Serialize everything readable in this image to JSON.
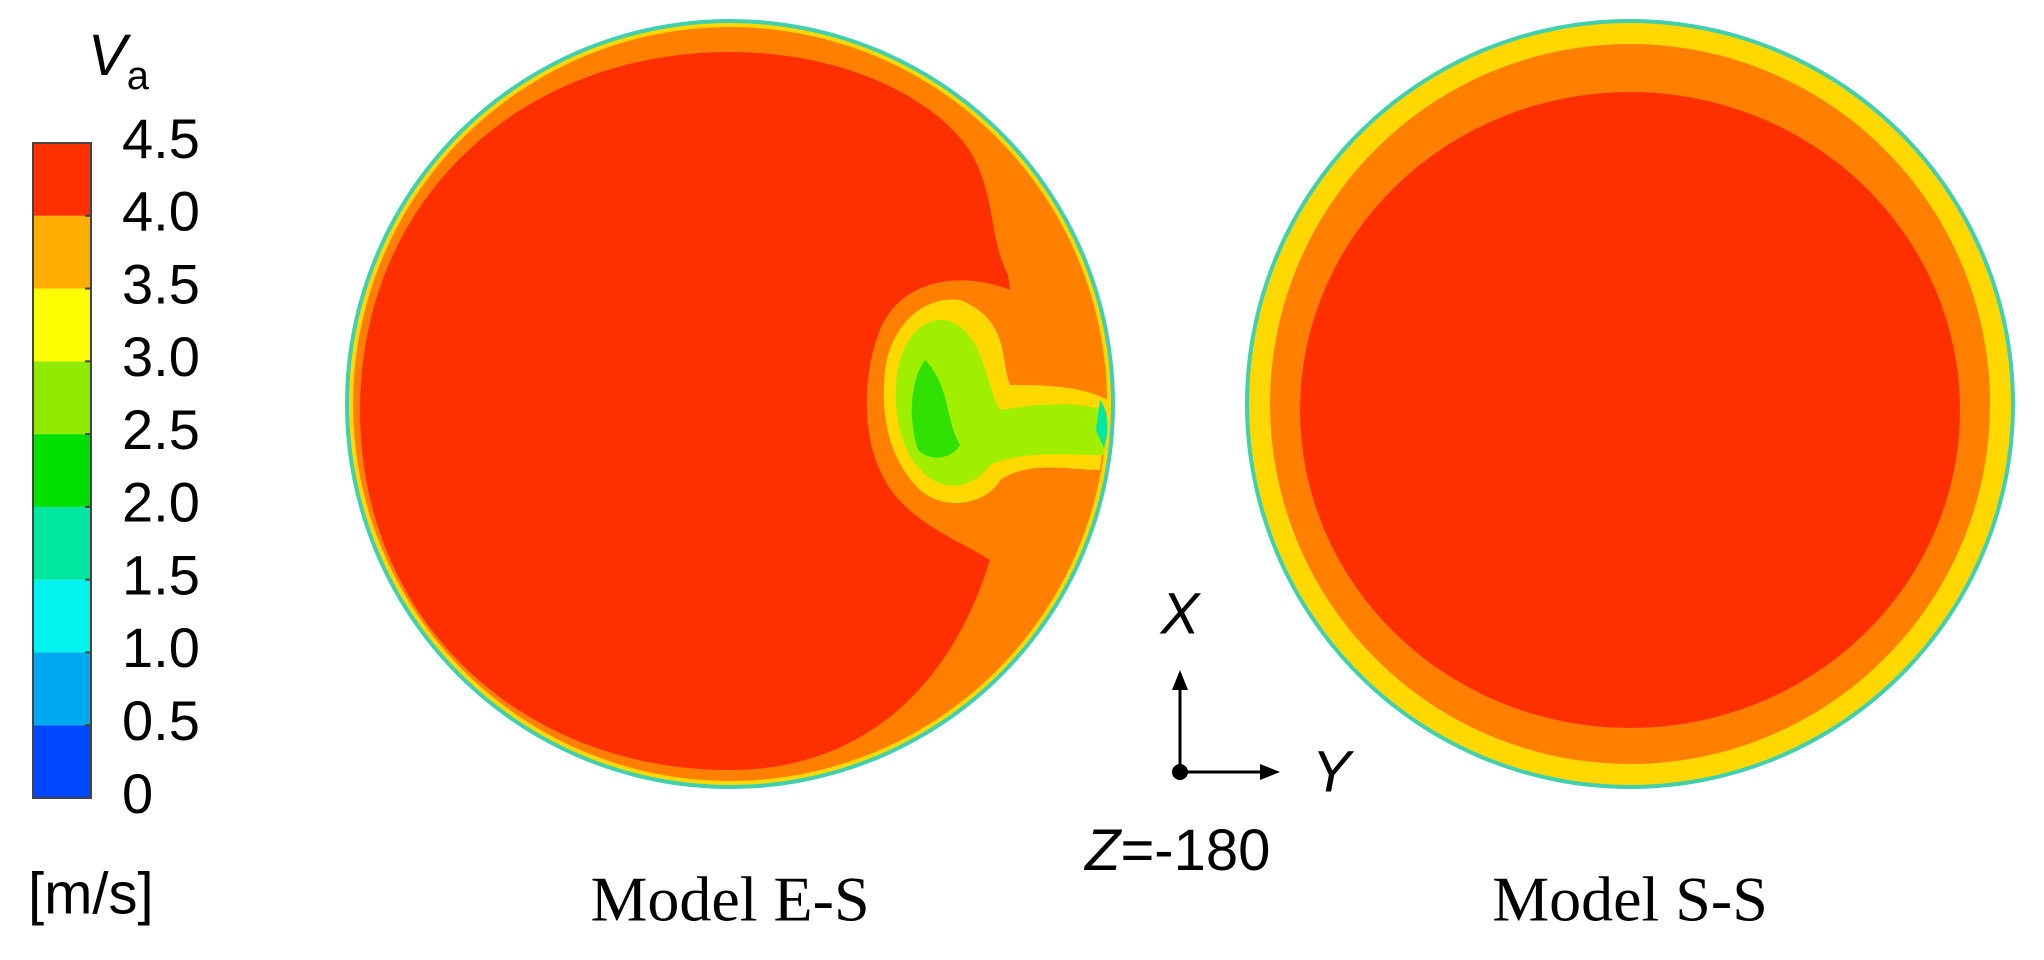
{
  "colorbar": {
    "title": "V",
    "title_subscript": "a",
    "unit": "[m/s]",
    "ticks": [
      0,
      0.5,
      {
        "value": 1,
        "label": "1.0"
      },
      1.5,
      {
        "value": 2,
        "label": "2.0"
      },
      2.5,
      {
        "value": 3,
        "label": "3.0"
      },
      3.5,
      {
        "value": 4,
        "label": "4.0"
      },
      4.5
    ],
    "colors": [
      "#0048ff",
      "#00a8f0",
      "#00f4ee",
      "#00e8a0",
      "#00e000",
      "#90ea00",
      "#ffff00",
      "#ffae00",
      "#ff3000"
    ]
  },
  "panels": [
    {
      "label": "Model E-S"
    },
    {
      "label": "Model S-S"
    }
  ],
  "axes_triad": {
    "x_label": "X",
    "y_label": "Y",
    "z_label": "Z",
    "z_value": "=-180"
  }
}
